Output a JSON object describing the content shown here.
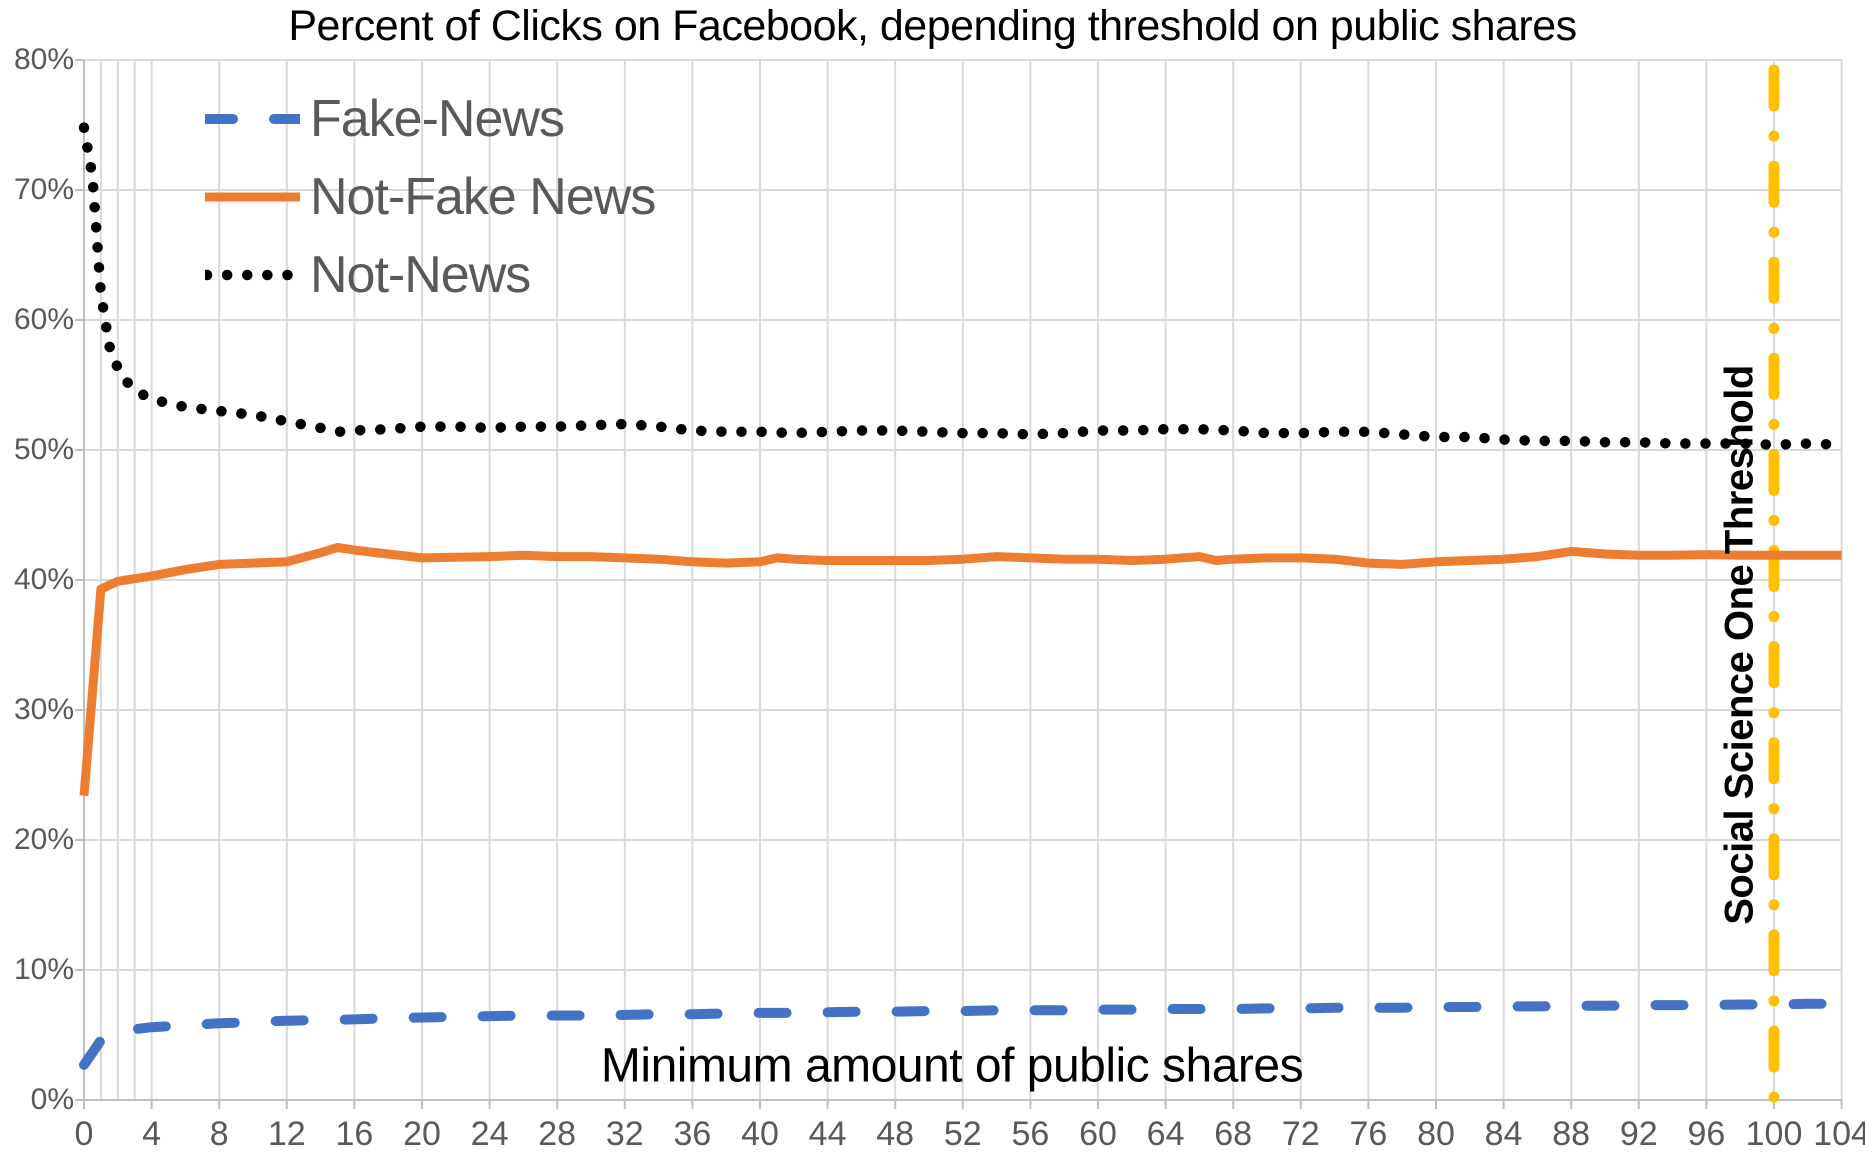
{
  "colors": {
    "background": "#ffffff",
    "gridline": "#D9D9D9",
    "axis_line": "#BFBFBF",
    "tick_text": "#595959",
    "legend_text": "#595959",
    "title_text": "#000000",
    "fake_news_blue": "#4472C4",
    "not_fake_news_orange": "#ED7D31",
    "not_news_black": "#000000",
    "threshold_gold": "#FFC000"
  },
  "chart_data": {
    "type": "line",
    "title": "Percent of Clicks on Facebook, depending threshold on public shares",
    "xlabel": "Minimum amount of public shares",
    "ylabel": "",
    "grid": true,
    "legend_position": "top-left-inside",
    "x_axis": {
      "min": 0,
      "max": 104,
      "tick_values": [
        0,
        4,
        8,
        12,
        16,
        20,
        24,
        28,
        32,
        36,
        40,
        44,
        48,
        52,
        56,
        60,
        64,
        68,
        72,
        76,
        80,
        84,
        88,
        92,
        96,
        100,
        104
      ],
      "minor_gridlines": [
        1,
        2,
        3
      ]
    },
    "y_axis": {
      "min": 0,
      "max": 80,
      "tick_values": [
        0,
        10,
        20,
        30,
        40,
        50,
        60,
        70,
        80
      ],
      "tick_labels": [
        "0%",
        "10%",
        "20%",
        "30%",
        "40%",
        "50%",
        "60%",
        "70%",
        "80%"
      ]
    },
    "threshold_line": {
      "x": 100,
      "label": "Social Science One Threshold",
      "color": "#FFC000",
      "style": "dash-dot-vertical"
    },
    "series": [
      {
        "name": "Fake-News",
        "color": "#4472C4",
        "style": "dashed",
        "points": [
          [
            0,
            2.7
          ],
          [
            1,
            4.6
          ],
          [
            2,
            5.2
          ],
          [
            3,
            5.45
          ],
          [
            4,
            5.6
          ],
          [
            6,
            5.75
          ],
          [
            8,
            5.9
          ],
          [
            10,
            6.0
          ],
          [
            12,
            6.1
          ],
          [
            14,
            6.15
          ],
          [
            16,
            6.2
          ],
          [
            18,
            6.3
          ],
          [
            20,
            6.35
          ],
          [
            22,
            6.4
          ],
          [
            24,
            6.45
          ],
          [
            26,
            6.5
          ],
          [
            28,
            6.5
          ],
          [
            30,
            6.5
          ],
          [
            32,
            6.55
          ],
          [
            34,
            6.6
          ],
          [
            36,
            6.6
          ],
          [
            38,
            6.65
          ],
          [
            40,
            6.7
          ],
          [
            42,
            6.7
          ],
          [
            44,
            6.75
          ],
          [
            46,
            6.8
          ],
          [
            48,
            6.8
          ],
          [
            50,
            6.85
          ],
          [
            52,
            6.85
          ],
          [
            54,
            6.9
          ],
          [
            56,
            6.9
          ],
          [
            58,
            6.9
          ],
          [
            60,
            6.95
          ],
          [
            62,
            6.95
          ],
          [
            64,
            7.0
          ],
          [
            66,
            7.0
          ],
          [
            68,
            7.0
          ],
          [
            70,
            7.05
          ],
          [
            72,
            7.05
          ],
          [
            74,
            7.1
          ],
          [
            76,
            7.1
          ],
          [
            78,
            7.1
          ],
          [
            80,
            7.15
          ],
          [
            82,
            7.15
          ],
          [
            84,
            7.2
          ],
          [
            86,
            7.2
          ],
          [
            88,
            7.25
          ],
          [
            90,
            7.25
          ],
          [
            92,
            7.3
          ],
          [
            94,
            7.3
          ],
          [
            96,
            7.3
          ],
          [
            98,
            7.35
          ],
          [
            100,
            7.35
          ],
          [
            102,
            7.4
          ],
          [
            104,
            7.4
          ]
        ]
      },
      {
        "name": "Not-Fake News",
        "color": "#ED7D31",
        "style": "solid",
        "points": [
          [
            0,
            23.4
          ],
          [
            1,
            39.3
          ],
          [
            2,
            39.9
          ],
          [
            3,
            40.1
          ],
          [
            4,
            40.3
          ],
          [
            6,
            40.8
          ],
          [
            8,
            41.2
          ],
          [
            10,
            41.3
          ],
          [
            12,
            41.4
          ],
          [
            14,
            42.1
          ],
          [
            15,
            42.5
          ],
          [
            16,
            42.3
          ],
          [
            18,
            42.0
          ],
          [
            20,
            41.7
          ],
          [
            22,
            41.75
          ],
          [
            24,
            41.8
          ],
          [
            26,
            41.9
          ],
          [
            28,
            41.8
          ],
          [
            30,
            41.8
          ],
          [
            32,
            41.7
          ],
          [
            34,
            41.6
          ],
          [
            36,
            41.4
          ],
          [
            38,
            41.3
          ],
          [
            40,
            41.4
          ],
          [
            41,
            41.7
          ],
          [
            42,
            41.6
          ],
          [
            44,
            41.5
          ],
          [
            46,
            41.5
          ],
          [
            48,
            41.5
          ],
          [
            50,
            41.5
          ],
          [
            52,
            41.6
          ],
          [
            54,
            41.8
          ],
          [
            56,
            41.7
          ],
          [
            58,
            41.6
          ],
          [
            60,
            41.6
          ],
          [
            62,
            41.5
          ],
          [
            64,
            41.6
          ],
          [
            66,
            41.8
          ],
          [
            67,
            41.5
          ],
          [
            68,
            41.6
          ],
          [
            70,
            41.7
          ],
          [
            72,
            41.7
          ],
          [
            74,
            41.6
          ],
          [
            76,
            41.3
          ],
          [
            78,
            41.2
          ],
          [
            80,
            41.4
          ],
          [
            82,
            41.5
          ],
          [
            84,
            41.6
          ],
          [
            86,
            41.8
          ],
          [
            88,
            42.2
          ],
          [
            90,
            42.0
          ],
          [
            92,
            41.9
          ],
          [
            94,
            41.9
          ],
          [
            96,
            41.95
          ],
          [
            98,
            41.9
          ],
          [
            100,
            41.9
          ],
          [
            102,
            41.9
          ],
          [
            104,
            41.9
          ]
        ]
      },
      {
        "name": "Not-News",
        "color": "#000000",
        "style": "dotted",
        "points": [
          [
            0,
            74.8
          ],
          [
            0.5,
            71.0
          ],
          [
            1,
            62.0
          ],
          [
            1.5,
            58.0
          ],
          [
            2,
            56.3
          ],
          [
            2.5,
            55.3
          ],
          [
            3,
            54.6
          ],
          [
            4,
            53.9
          ],
          [
            6,
            53.3
          ],
          [
            8,
            53.0
          ],
          [
            10,
            52.7
          ],
          [
            12,
            52.2
          ],
          [
            14,
            51.7
          ],
          [
            15,
            51.4
          ],
          [
            16,
            51.5
          ],
          [
            18,
            51.6
          ],
          [
            20,
            51.8
          ],
          [
            22,
            51.8
          ],
          [
            24,
            51.7
          ],
          [
            26,
            51.8
          ],
          [
            28,
            51.8
          ],
          [
            30,
            51.9
          ],
          [
            32,
            52.0
          ],
          [
            34,
            51.8
          ],
          [
            36,
            51.5
          ],
          [
            38,
            51.4
          ],
          [
            40,
            51.4
          ],
          [
            42,
            51.3
          ],
          [
            44,
            51.4
          ],
          [
            46,
            51.5
          ],
          [
            48,
            51.5
          ],
          [
            50,
            51.4
          ],
          [
            52,
            51.3
          ],
          [
            54,
            51.3
          ],
          [
            56,
            51.2
          ],
          [
            58,
            51.3
          ],
          [
            60,
            51.5
          ],
          [
            62,
            51.5
          ],
          [
            64,
            51.6
          ],
          [
            66,
            51.6
          ],
          [
            68,
            51.5
          ],
          [
            70,
            51.3
          ],
          [
            72,
            51.3
          ],
          [
            74,
            51.4
          ],
          [
            76,
            51.4
          ],
          [
            78,
            51.2
          ],
          [
            80,
            51.0
          ],
          [
            82,
            51.0
          ],
          [
            84,
            50.8
          ],
          [
            86,
            50.7
          ],
          [
            88,
            50.7
          ],
          [
            90,
            50.6
          ],
          [
            92,
            50.6
          ],
          [
            94,
            50.5
          ],
          [
            96,
            50.5
          ],
          [
            98,
            50.5
          ],
          [
            100,
            50.4
          ],
          [
            102,
            50.5
          ],
          [
            104,
            50.4
          ]
        ]
      }
    ]
  }
}
